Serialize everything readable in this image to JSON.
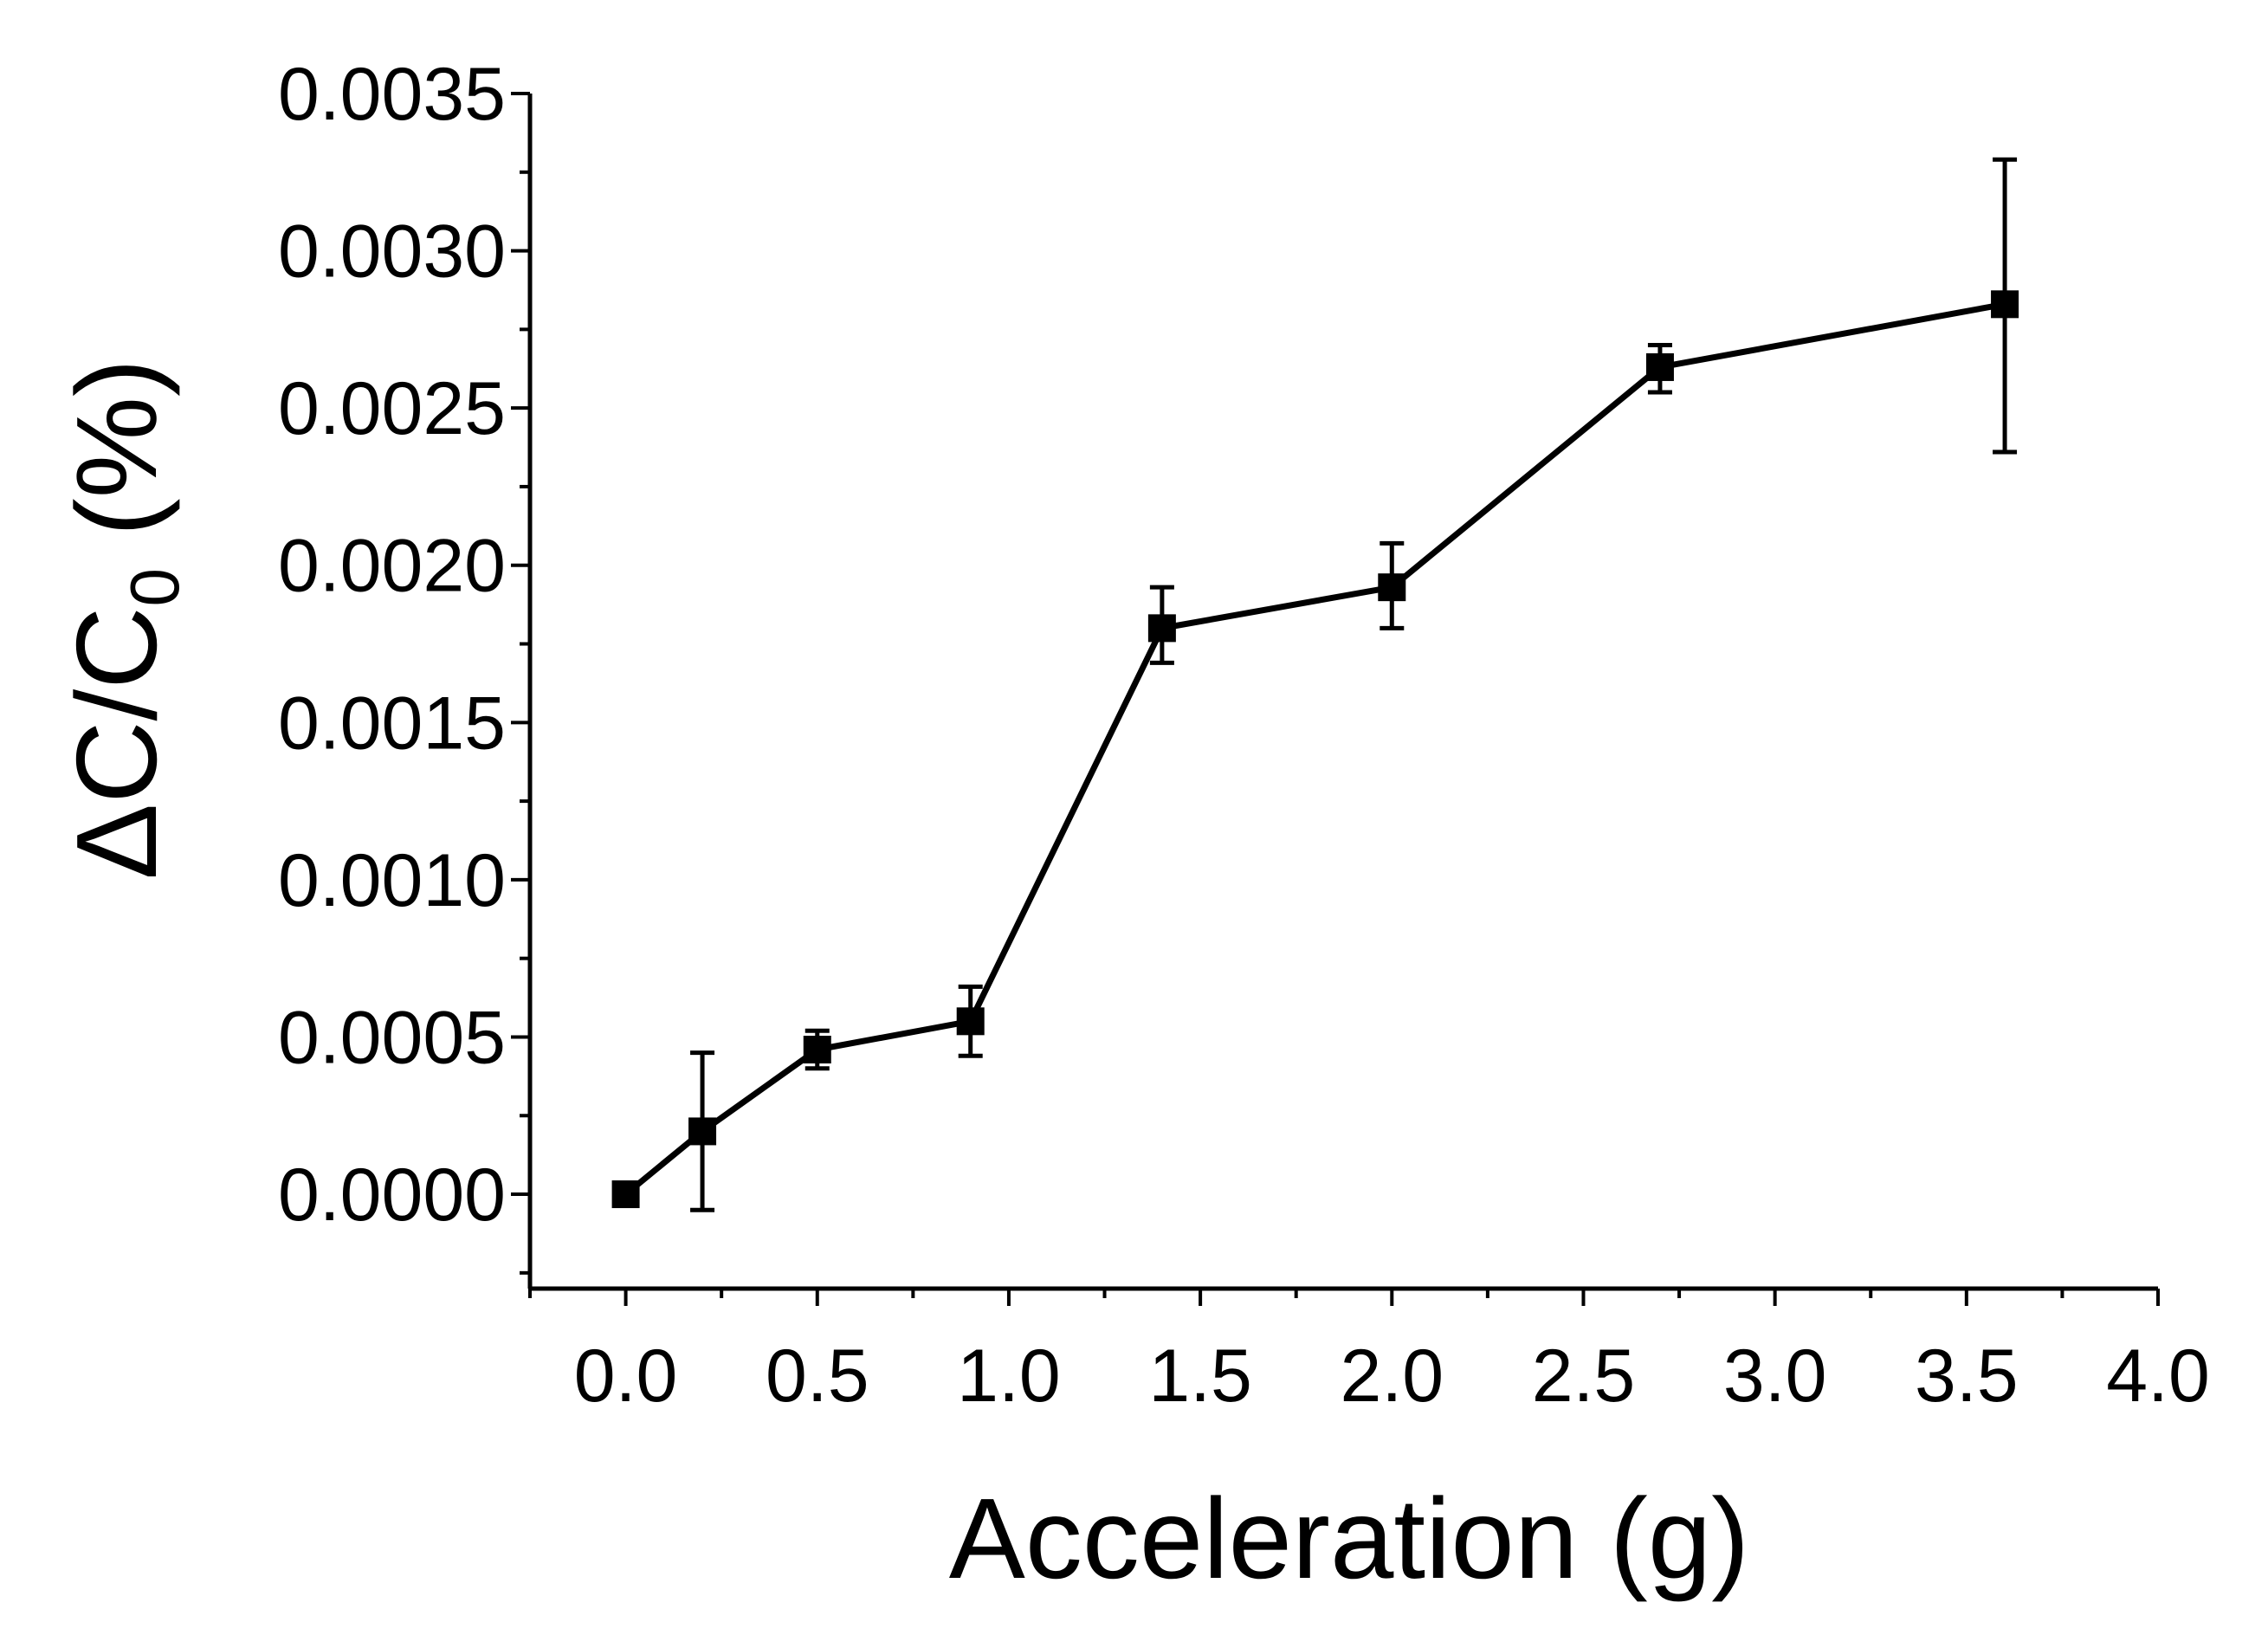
{
  "chart_data": {
    "type": "line",
    "title": "",
    "xlabel": "Acceleration (g)",
    "ylabel_parts": {
      "main": "ΔC/C",
      "sub": "0",
      "unit": " (%)"
    },
    "xlim": [
      -0.25,
      4.0
    ],
    "ylim": [
      -0.0003,
      0.0035
    ],
    "xticks": [
      0.0,
      0.5,
      1.0,
      1.5,
      2.0,
      2.5,
      3.0,
      3.5,
      4.0
    ],
    "xtick_labels": [
      "0.0",
      "0.5",
      "1.0",
      "1.5",
      "2.0",
      "2.5",
      "3.0",
      "3.5",
      "4.0"
    ],
    "yticks": [
      0.0,
      0.0005,
      0.001,
      0.0015,
      0.002,
      0.0025,
      0.003,
      0.0035
    ],
    "ytick_labels": [
      "0.0000",
      "0.0005",
      "0.0010",
      "0.0015",
      "0.0020",
      "0.0025",
      "0.0030",
      "0.0035"
    ],
    "grid": false,
    "series": [
      {
        "name": "ΔC/C0",
        "x": [
          0.0,
          0.2,
          0.5,
          0.9,
          1.4,
          2.0,
          2.7,
          3.6
        ],
        "y": [
          0.0,
          0.0002,
          0.00046,
          0.00055,
          0.0018,
          0.00193,
          0.00263,
          0.00283
        ],
        "err_low": [
          0.0,
          0.00025,
          6e-05,
          0.00011,
          0.00011,
          0.00013,
          8e-05,
          0.00047
        ],
        "err_high": [
          0.0,
          0.00025,
          6e-05,
          0.00011,
          0.00013,
          0.00014,
          7e-05,
          0.00046
        ],
        "color": "#000000",
        "marker": "square"
      }
    ]
  }
}
